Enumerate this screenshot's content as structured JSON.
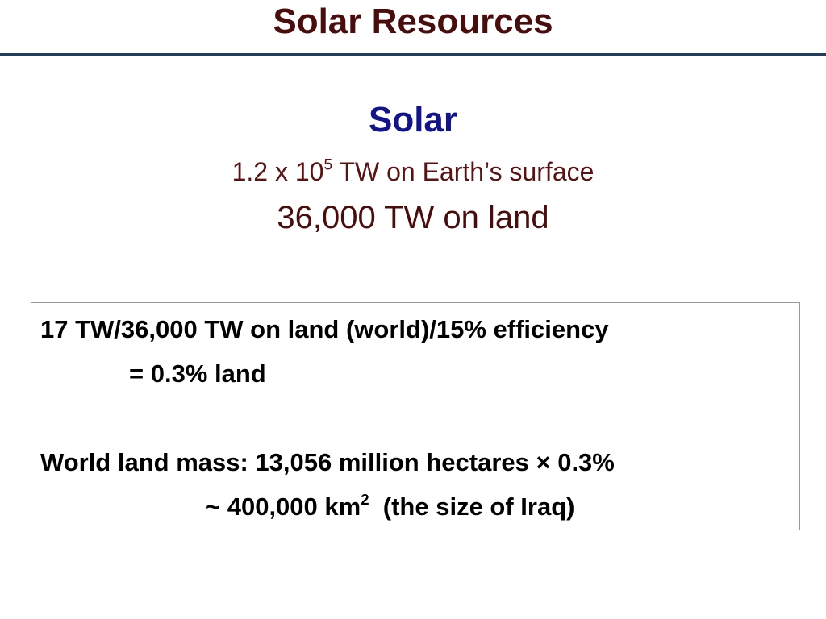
{
  "title": "Solar Resources",
  "subtitle": "Solar",
  "surface": {
    "base": "1.2 x 10",
    "sup": "5",
    "rest": "TW on Earth’s surface"
  },
  "land": "36,000 TW on land",
  "box": {
    "line1": "17 TW/36,000 TW on land (world)/15% efficiency",
    "line2": "= 0.3% land",
    "line3": "World land mass: 13,056 million hectares × 0.3%",
    "line4": {
      "base": "~ 400,000 km",
      "sup": "2",
      "rest": "(the size of Iraq)"
    }
  }
}
